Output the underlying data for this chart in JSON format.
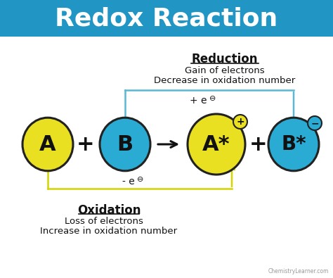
{
  "title": "Redox Reaction",
  "title_bg_color": "#2196C4",
  "title_text_color": "#FFFFFF",
  "bg_color": "#FFFFFF",
  "yellow_color": "#E8E020",
  "blue_color": "#29ABD4",
  "circle_edge_color": "#222222",
  "reduction_label": "Reduction",
  "reduction_line1": "Gain of electrons",
  "reduction_line2": "Decrease in oxidation number",
  "oxidation_label": "Oxidation",
  "oxidation_line1": "Loss of electrons",
  "oxidation_line2": "Increase in oxidation number",
  "watermark": "ChemistryLearner.com",
  "arrow_blue_color": "#5BB8D4",
  "arrow_yellow_color": "#D4D400"
}
